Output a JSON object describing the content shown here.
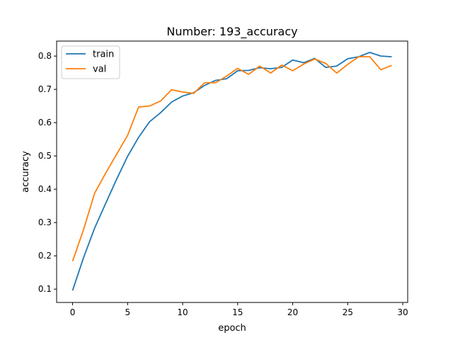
{
  "chart_data": {
    "type": "line",
    "title": "Number: 193_accuracy",
    "xlabel": "epoch",
    "ylabel": "accuracy",
    "xlim": [
      -1.45,
      30.45
    ],
    "ylim": [
      0.06,
      0.845
    ],
    "xticks": [
      0,
      5,
      10,
      15,
      20,
      25,
      30
    ],
    "yticks": [
      0.1,
      0.2,
      0.3,
      0.4,
      0.5,
      0.6,
      0.7,
      0.8
    ],
    "grid": false,
    "legend": "top-left",
    "x": [
      0,
      1,
      2,
      3,
      4,
      5,
      6,
      7,
      8,
      9,
      10,
      11,
      12,
      13,
      14,
      15,
      16,
      17,
      18,
      19,
      20,
      21,
      22,
      23,
      24,
      25,
      26,
      27,
      28,
      29
    ],
    "series": [
      {
        "name": "train",
        "color": "#1f77b4",
        "values": [
          0.096,
          0.195,
          0.283,
          0.357,
          0.43,
          0.499,
          0.556,
          0.603,
          0.63,
          0.662,
          0.68,
          0.69,
          0.712,
          0.727,
          0.732,
          0.756,
          0.757,
          0.765,
          0.762,
          0.766,
          0.788,
          0.78,
          0.793,
          0.766,
          0.77,
          0.792,
          0.798,
          0.811,
          0.8,
          0.798
        ]
      },
      {
        "name": "val",
        "color": "#ff7f0e",
        "values": [
          0.184,
          0.279,
          0.388,
          0.448,
          0.505,
          0.562,
          0.647,
          0.65,
          0.665,
          0.699,
          0.692,
          0.688,
          0.72,
          0.72,
          0.74,
          0.763,
          0.745,
          0.77,
          0.749,
          0.773,
          0.756,
          0.776,
          0.791,
          0.778,
          0.749,
          0.775,
          0.798,
          0.798,
          0.759,
          0.772
        ]
      }
    ]
  }
}
